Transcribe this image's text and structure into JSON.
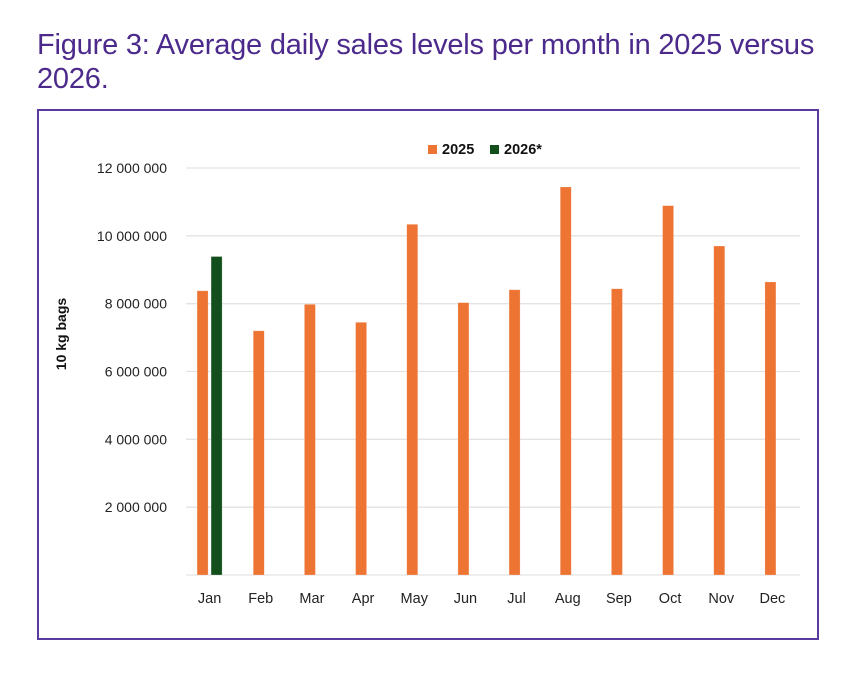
{
  "figure": {
    "title": "Figure 3: Average daily sales levels per month in 2025 versus 2026."
  },
  "chart_data": {
    "type": "bar",
    "title": "Figure 3: Average daily sales levels per month in 2025 versus 2026.",
    "xlabel": "",
    "ylabel": "10 kg bags",
    "ylim": [
      0,
      12000000
    ],
    "yticks": [
      0,
      2000000,
      4000000,
      6000000,
      8000000,
      10000000,
      12000000
    ],
    "ytick_labels": [
      "",
      "2 000 000",
      "4 000 000",
      "6 000 000",
      "8 000 000",
      "10 000 000",
      "12 000 000"
    ],
    "grid": true,
    "legend_position": "top-center",
    "categories": [
      "Jan",
      "Feb",
      "Mar",
      "Apr",
      "May",
      "Jun",
      "Jul",
      "Aug",
      "Sep",
      "Oct",
      "Nov",
      "Dec"
    ],
    "series": [
      {
        "name": "2025",
        "color": "#ed7432",
        "values": [
          8380000,
          7200000,
          7980000,
          7450000,
          10340000,
          8030000,
          8410000,
          11440000,
          8440000,
          10890000,
          9700000,
          8640000
        ]
      },
      {
        "name": "2026*",
        "color": "#134f1c",
        "values": [
          9390000,
          null,
          null,
          null,
          null,
          null,
          null,
          null,
          null,
          null,
          null,
          null
        ]
      }
    ]
  },
  "colors": {
    "title": "#4b2a8c",
    "frame": "#5b3a9e",
    "grid": "#e3e3e3"
  }
}
